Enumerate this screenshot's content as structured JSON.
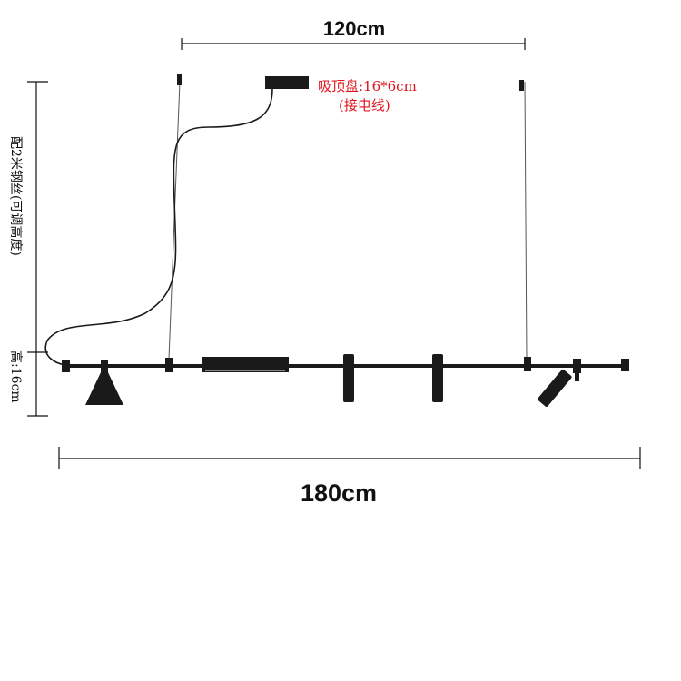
{
  "dimensions": {
    "top_width": "120cm",
    "bottom_width": "180cm",
    "side_wire": "配2米钢丝(可调高度)",
    "side_height": "高:16cm"
  },
  "canopy": {
    "size_label": "吸顶盘:16*6cm",
    "note": "(接电线)"
  },
  "colors": {
    "lamp": "#1a1a1a",
    "annotation": "#e0141e"
  }
}
